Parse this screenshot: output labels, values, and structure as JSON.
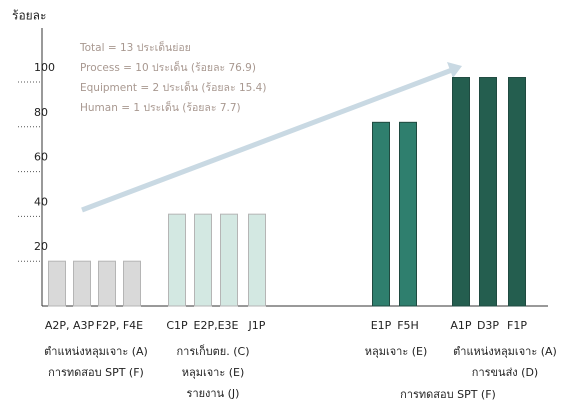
{
  "chart_data": {
    "type": "bar",
    "y_label": "ร้อยละ",
    "categories": [
      "A2P, A3P",
      null,
      "F2P, F4E",
      null,
      "C1P",
      "E2P,E3E",
      null,
      "J1P",
      "E1P",
      "F5H",
      "A1P",
      "D3P",
      "F1P"
    ],
    "values": [
      20,
      20,
      20,
      20,
      41,
      41,
      41,
      41,
      82,
      82,
      102,
      102,
      102
    ],
    "bar_colors": [
      "#d9d9d9",
      "#d9d9d9",
      "#d9d9d9",
      "#d9d9d9",
      "#d3e8e2",
      "#d3e8e2",
      "#d3e8e2",
      "#d3e8e2",
      "#2f7f6e",
      "#2f7f6e",
      "#245e4f",
      "#245e4f",
      "#245e4f"
    ],
    "ylim": [
      0,
      100
    ],
    "yticks": [
      20,
      40,
      60,
      80,
      100
    ],
    "summary": [
      "Total = 13 ประเด็นย่อย",
      "Process = 10 ประเด็น (ร้อยละ 76.9)",
      "Equipment =  2 ประเด็น (ร้อยละ 15.4)",
      "Human = 1 ประเด็น (ร้อยละ 7.7)"
    ],
    "group_labels": [
      [
        "ตำแหน่งหลุมเจาะ (A)",
        "การทดสอบ SPT (F)"
      ],
      [
        "การเก็บตย. (C)",
        "หลุมเจาะ (E)",
        "รายงาน (J)"
      ],
      [
        "หลุมเจาะ (E)"
      ],
      [
        "ตำแหน่งหลุมเจาะ (A)",
        "การขนส่ง (D)"
      ]
    ],
    "footer_label": "การทดสอบ SPT (F)"
  }
}
